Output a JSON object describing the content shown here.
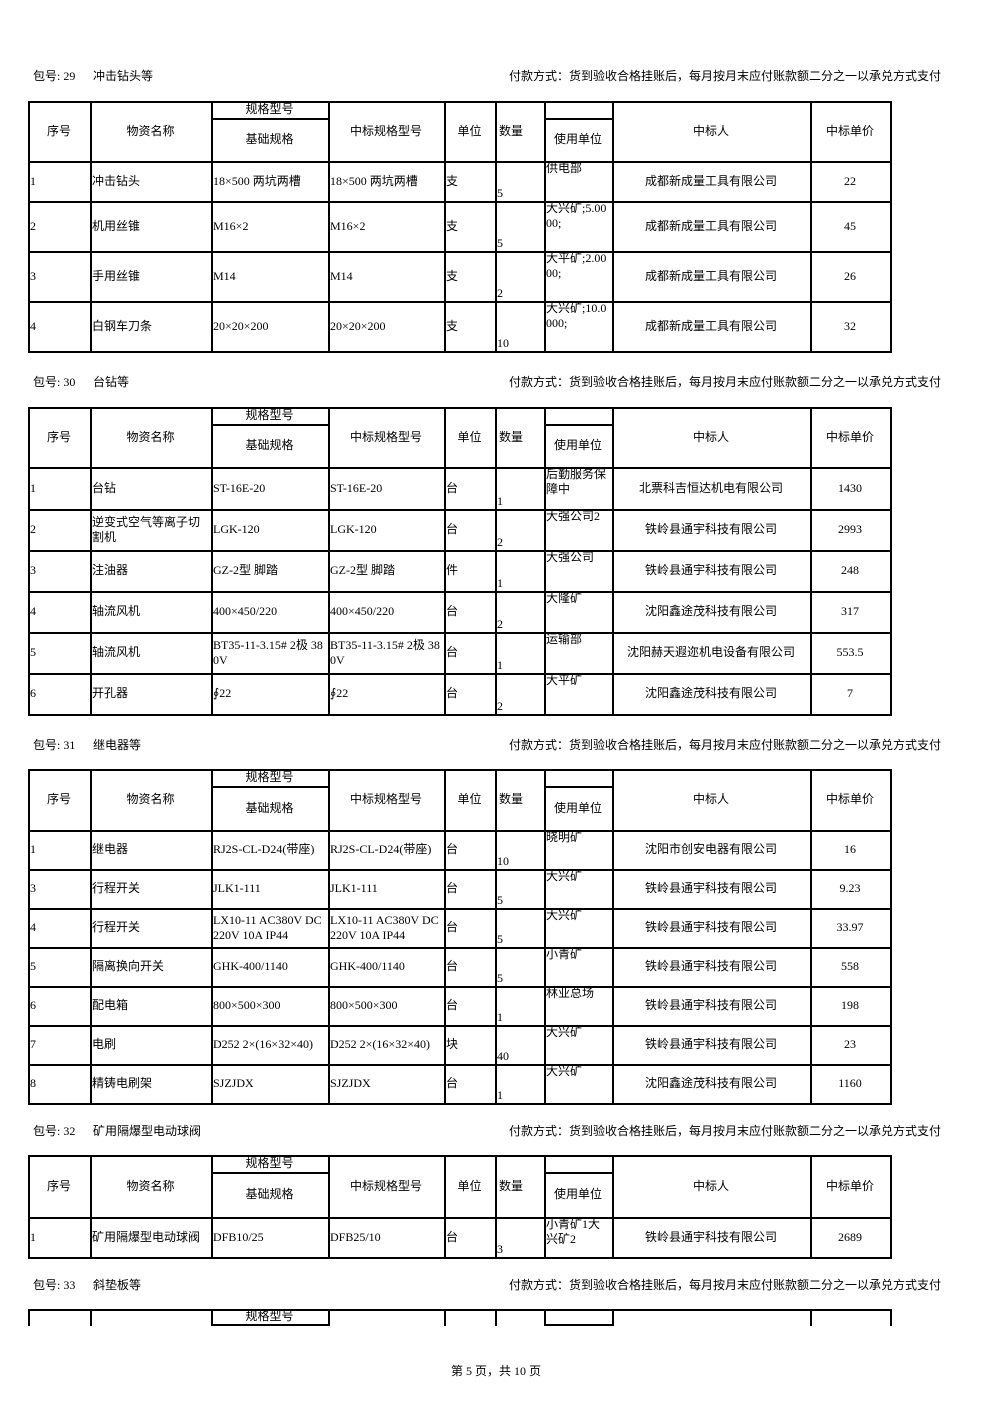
{
  "table_header": {
    "no": "序号",
    "name": "物资名称",
    "spec_group": "规格型号",
    "spec": "基础规格",
    "bid_spec": "中标规格型号",
    "unit": "单位",
    "qty": "数量",
    "user": "使用单位",
    "winner": "中标人",
    "price": "中标单价"
  },
  "packages": [
    {
      "label": "包号: 29",
      "name": "冲击钻头等",
      "payment": "付款方式：货到验收合格挂账后，每月按月末应付账款额二分之一以承兑方式支付",
      "rows": [
        [
          1,
          "冲击钻头",
          "18×500 两坑两槽",
          "18×500 两坑两槽",
          "支",
          5,
          "供电部",
          "成都新成量工具有限公司",
          22
        ],
        [
          2,
          "机用丝锥",
          "M16×2",
          "M16×2",
          "支",
          5,
          "大兴矿;5.0000;",
          "成都新成量工具有限公司",
          45
        ],
        [
          3,
          "手用丝锥",
          "M14",
          "M14",
          "支",
          2,
          "大平矿;2.0000;",
          "成都新成量工具有限公司",
          26
        ],
        [
          4,
          "白钢车刀条",
          "20×20×200",
          "20×20×200",
          "支",
          10,
          "大兴矿;10.0000;",
          "成都新成量工具有限公司",
          32
        ]
      ]
    },
    {
      "label": "包号: 30",
      "name": "台钻等",
      "payment": "付款方式：货到验收合格挂账后，每月按月末应付账款额二分之一以承兑方式支付",
      "rows": [
        [
          1,
          "台钻",
          "ST-16E-20",
          "ST-16E-20",
          "台",
          1,
          "后勤服务保障中",
          "北票科吉恒达机电有限公司",
          1430
        ],
        [
          2,
          "逆变式空气等离子切割机",
          "LGK-120",
          "LGK-120",
          "台",
          2,
          "大强公司2",
          "铁岭县通宇科技有限公司",
          2993
        ],
        [
          3,
          "注油器",
          "GZ-2型 脚踏",
          "GZ-2型 脚踏",
          "件",
          1,
          "大强公司",
          "铁岭县通宇科技有限公司",
          248
        ],
        [
          4,
          "轴流风机",
          "400×450/220",
          "400×450/220",
          "台",
          2,
          "大隆矿",
          "沈阳鑫途茂科技有限公司",
          317
        ],
        [
          5,
          "轴流风机",
          "BT35-11-3.15# 2极 380V",
          "BT35-11-3.15# 2极 380V",
          "台",
          1,
          "运输部",
          "沈阳赫天遐迩机电设备有限公司",
          553.5
        ],
        [
          6,
          "开孔器",
          "∮22",
          "∮22",
          "台",
          2,
          "大平矿",
          "沈阳鑫途茂科技有限公司",
          7
        ]
      ]
    },
    {
      "label": "包号: 31",
      "name": "继电器等",
      "payment": "付款方式：货到验收合格挂账后，每月按月末应付账款额二分之一以承兑方式支付",
      "rows": [
        [
          1,
          "继电器",
          "RJ2S-CL-D24(带座)",
          "RJ2S-CL-D24(带座)",
          "台",
          10,
          "晓明矿",
          "沈阳市创安电器有限公司",
          16
        ],
        [
          3,
          "行程开关",
          "JLK1-111",
          "JLK1-111",
          "台",
          5,
          "大兴矿",
          "铁岭县通宇科技有限公司",
          9.23
        ],
        [
          4,
          "行程开关",
          "LX10-11 AC380V DC220V 10A IP44",
          "LX10-11 AC380V DC220V 10A IP44",
          "台",
          5,
          "大兴矿",
          "铁岭县通宇科技有限公司",
          33.97
        ],
        [
          5,
          "隔离换向开关",
          "GHK-400/1140",
          "GHK-400/1140",
          "台",
          5,
          "小青矿",
          "铁岭县通宇科技有限公司",
          558
        ],
        [
          6,
          "配电箱",
          "800×500×300",
          "800×500×300",
          "台",
          1,
          "林业总场",
          "铁岭县通宇科技有限公司",
          198
        ],
        [
          7,
          "电刷",
          "D252 2×(16×32×40)",
          "D252 2×(16×32×40)",
          "块",
          40,
          "大兴矿",
          "铁岭县通宇科技有限公司",
          23
        ],
        [
          8,
          "精铸电刷架",
          "SJZJDX",
          "SJZJDX",
          "台",
          1,
          "大兴矿",
          "沈阳鑫途茂科技有限公司",
          1160
        ]
      ]
    },
    {
      "label": "包号: 32",
      "name": "矿用隔爆型电动球阀",
      "payment": "付款方式：货到验收合格挂账后，每月按月末应付账款额二分之一以承兑方式支付",
      "rows": [
        [
          1,
          "矿用隔爆型电动球阀",
          "DFB10/25",
          "DFB25/10",
          "台",
          3,
          "小青矿1大兴矿2",
          "铁岭县通宇科技有限公司",
          2689
        ]
      ]
    },
    {
      "label": "包号: 33",
      "name": "斜垫板等",
      "payment": "付款方式：货到验收合格挂账后，每月按月末应付账款额二分之一以承兑方式支付",
      "rows": []
    }
  ],
  "footer": "第 5 页，共 10 页"
}
